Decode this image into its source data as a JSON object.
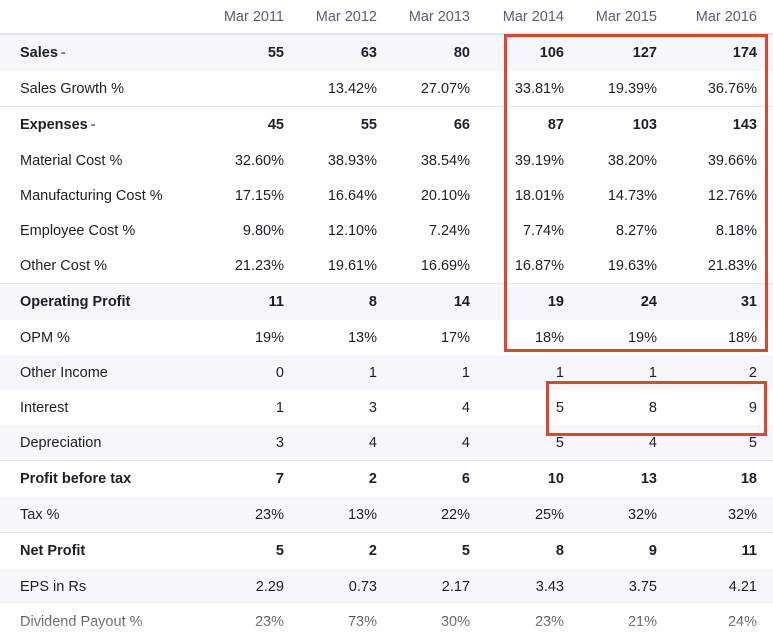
{
  "years": [
    "Mar 2011",
    "Mar 2012",
    "Mar 2013",
    "Mar 2014",
    "Mar 2015",
    "Mar 2016"
  ],
  "rows": [
    {
      "label": "Sales",
      "toggle": "-",
      "values": [
        "55",
        "63",
        "80",
        "106",
        "127",
        "174"
      ]
    },
    {
      "label": "Sales Growth %",
      "values": [
        "",
        "13.42%",
        "27.07%",
        "33.81%",
        "19.39%",
        "36.76%"
      ]
    },
    {
      "label": "Expenses",
      "toggle": "-",
      "values": [
        "45",
        "55",
        "66",
        "87",
        "103",
        "143"
      ]
    },
    {
      "label": "Material Cost %",
      "values": [
        "32.60%",
        "38.93%",
        "38.54%",
        "39.19%",
        "38.20%",
        "39.66%"
      ]
    },
    {
      "label": "Manufacturing Cost %",
      "values": [
        "17.15%",
        "16.64%",
        "20.10%",
        "18.01%",
        "14.73%",
        "12.76%"
      ]
    },
    {
      "label": "Employee Cost %",
      "values": [
        "9.80%",
        "12.10%",
        "7.24%",
        "7.74%",
        "8.27%",
        "8.18%"
      ]
    },
    {
      "label": "Other Cost %",
      "values": [
        "21.23%",
        "19.61%",
        "16.69%",
        "16.87%",
        "19.63%",
        "21.83%"
      ]
    },
    {
      "label": "Operating Profit",
      "values": [
        "11",
        "8",
        "14",
        "19",
        "24",
        "31"
      ]
    },
    {
      "label": "OPM %",
      "values": [
        "19%",
        "13%",
        "17%",
        "18%",
        "19%",
        "18%"
      ]
    },
    {
      "label": "Other Income",
      "values": [
        "0",
        "1",
        "1",
        "1",
        "1",
        "2"
      ]
    },
    {
      "label": "Interest",
      "values": [
        "1",
        "3",
        "4",
        "5",
        "8",
        "9"
      ]
    },
    {
      "label": "Depreciation",
      "values": [
        "3",
        "4",
        "4",
        "5",
        "4",
        "5"
      ]
    },
    {
      "label": "Profit before tax",
      "values": [
        "7",
        "2",
        "6",
        "10",
        "13",
        "18"
      ]
    },
    {
      "label": "Tax %",
      "values": [
        "23%",
        "13%",
        "22%",
        "25%",
        "32%",
        "32%"
      ]
    },
    {
      "label": "Net Profit",
      "values": [
        "5",
        "2",
        "5",
        "8",
        "9",
        "11"
      ]
    },
    {
      "label": "EPS in Rs",
      "values": [
        "2.29",
        "0.73",
        "2.17",
        "3.43",
        "3.75",
        "4.21"
      ]
    },
    {
      "label": "Dividend Payout %",
      "values": [
        "23%",
        "73%",
        "30%",
        "23%",
        "21%",
        "24%"
      ]
    }
  ],
  "highlight_color": "#e0442c"
}
